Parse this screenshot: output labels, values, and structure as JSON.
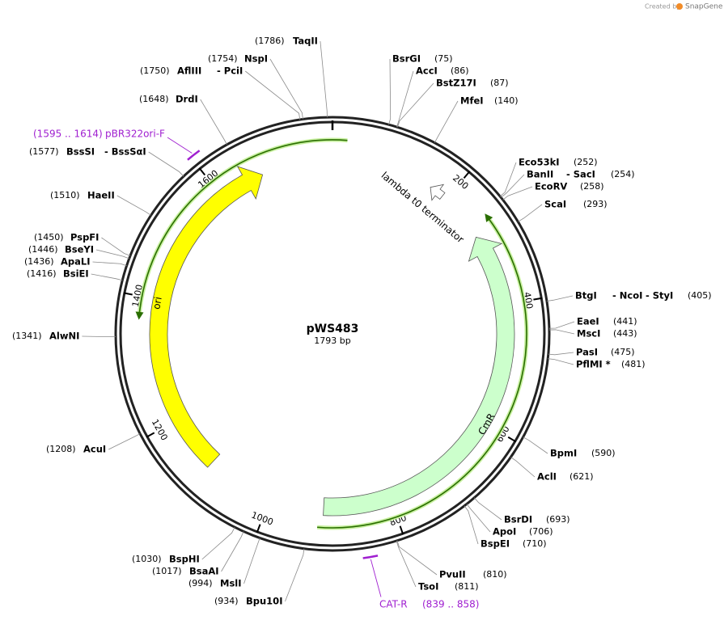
{
  "watermark": "Created by",
  "brand": "SnapGene",
  "title": "pWS483",
  "length": {
    "value": 1793,
    "label": "1793 bp"
  },
  "ticks": [
    200,
    400,
    600,
    800,
    1000,
    1200,
    1400,
    1600
  ],
  "features": [
    {
      "name": "ori",
      "start": 1111,
      "end": 1675,
      "direction": "forward",
      "color": "#ffff00"
    },
    {
      "name": "CmR",
      "start": 279,
      "end": 911,
      "direction": "reverse",
      "color": "#ccffcc"
    },
    {
      "name": "lambda t0 terminator",
      "start": 168,
      "end": 192,
      "direction": "reverse",
      "color": "#ffffff"
    }
  ],
  "primers": [
    {
      "label": "pBR322ori-F",
      "site": "(1595 .. 1614)",
      "start": 1595,
      "end": 1614,
      "color": "#a020d0"
    },
    {
      "label": "CAT-R",
      "site": "(839 .. 858)",
      "start": 839,
      "end": 858,
      "color": "#a020d0"
    }
  ],
  "enzymes": [
    {
      "names": [
        "BsrGI"
      ],
      "site": "(75)",
      "bp": 75
    },
    {
      "names": [
        "AccI"
      ],
      "site": "(86)",
      "bp": 86
    },
    {
      "names": [
        "BstZ17I"
      ],
      "site": "(87)",
      "bp": 87
    },
    {
      "names": [
        "MfeI"
      ],
      "site": "(140)",
      "bp": 140
    },
    {
      "names": [
        "Eco53kI"
      ],
      "site": "(252)",
      "bp": 252
    },
    {
      "names": [
        "BanII",
        "- SacI"
      ],
      "site": "(254)",
      "bp": 254
    },
    {
      "names": [
        "EcoRV"
      ],
      "site": "(258)",
      "bp": 258
    },
    {
      "names": [
        "ScaI"
      ],
      "site": "(293)",
      "bp": 293
    },
    {
      "names": [
        "BtgI",
        "- NcoI",
        "- StyI"
      ],
      "site": "(405)",
      "bp": 405
    },
    {
      "names": [
        "EaeI"
      ],
      "site": "(441)",
      "bp": 441
    },
    {
      "names": [
        "MscI"
      ],
      "site": "(443)",
      "bp": 443
    },
    {
      "names": [
        "PasI"
      ],
      "site": "(475)",
      "bp": 475
    },
    {
      "names": [
        "PflMI *"
      ],
      "site": "(481)",
      "bp": 481
    },
    {
      "names": [
        "BpmI"
      ],
      "site": "(590)",
      "bp": 590
    },
    {
      "names": [
        "AclI"
      ],
      "site": "(621)",
      "bp": 621
    },
    {
      "names": [
        "BsrDI"
      ],
      "site": "(693)",
      "bp": 693
    },
    {
      "names": [
        "ApoI"
      ],
      "site": "(706)",
      "bp": 706
    },
    {
      "names": [
        "BspEI"
      ],
      "site": "(710)",
      "bp": 710
    },
    {
      "names": [
        "PvuII"
      ],
      "site": "(810)",
      "bp": 810
    },
    {
      "names": [
        "TsoI"
      ],
      "site": "(811)",
      "bp": 811
    },
    {
      "names": [
        "Bpu10I"
      ],
      "site": "(934)",
      "bp": 934
    },
    {
      "names": [
        "MslI"
      ],
      "site": "(994)",
      "bp": 994
    },
    {
      "names": [
        "BsaAI"
      ],
      "site": "(1017)",
      "bp": 1017
    },
    {
      "names": [
        "BspHI"
      ],
      "site": "(1030)",
      "bp": 1030
    },
    {
      "names": [
        "AcuI"
      ],
      "site": "(1208)",
      "bp": 1208
    },
    {
      "names": [
        "AlwNI"
      ],
      "site": "(1341)",
      "bp": 1341
    },
    {
      "names": [
        "BsiEI"
      ],
      "site": "(1416)",
      "bp": 1416
    },
    {
      "names": [
        "ApaLI"
      ],
      "site": "(1436)",
      "bp": 1436
    },
    {
      "names": [
        "BseYI"
      ],
      "site": "(1446)",
      "bp": 1446
    },
    {
      "names": [
        "PspFI"
      ],
      "site": "(1450)",
      "bp": 1450
    },
    {
      "names": [
        "HaeII"
      ],
      "site": "(1510)",
      "bp": 1510
    },
    {
      "names": [
        "BssSI",
        "- BssSαI"
      ],
      "site": "(1577)",
      "bp": 1577
    },
    {
      "names": [
        "DrdI"
      ],
      "site": "(1648)",
      "bp": 1648
    },
    {
      "names": [
        "AflIII",
        "- PciI"
      ],
      "site": "(1750)",
      "bp": 1750
    },
    {
      "names": [
        "NspI"
      ],
      "site": "(1754)",
      "bp": 1754
    },
    {
      "names": [
        "TaqII"
      ],
      "site": "(1786)",
      "bp": 1786
    }
  ]
}
